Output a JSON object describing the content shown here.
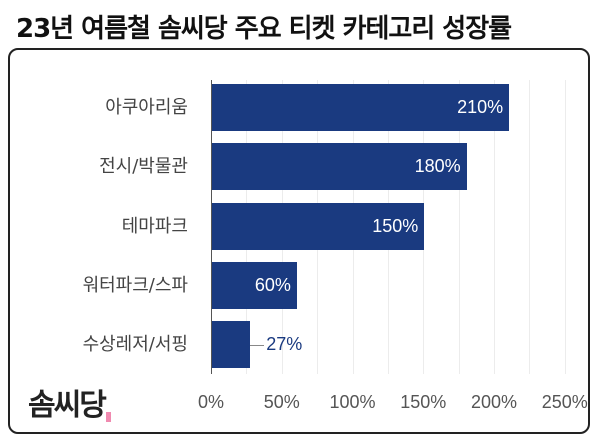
{
  "title": "23년 여름철 솜씨당 주요 티켓 카테고리 성장률",
  "logo": {
    "text": "솜씨당",
    "name": "somssidang-logo"
  },
  "colors": {
    "bar": "#1a3a80",
    "label_inside": "#ffffff",
    "label_outside": "#1a3a80"
  },
  "chart_data": {
    "type": "bar",
    "orientation": "horizontal",
    "title": "23년 여름철 솜씨당 주요 티켓 카테고리 성장률",
    "categories": [
      "아쿠아리움",
      "전시/박물관",
      "테마파크",
      "워터파크/스파",
      "수상레저/서핑"
    ],
    "values": [
      210,
      180,
      150,
      60,
      27
    ],
    "value_labels": [
      "210%",
      "180%",
      "150%",
      "60%",
      "27%"
    ],
    "xlabel": "",
    "ylabel": "",
    "xlim": [
      0,
      250
    ],
    "xticks": [
      "0%",
      "50%",
      "100%",
      "150%",
      "200%",
      "250%"
    ],
    "grid": true,
    "legend": null
  }
}
